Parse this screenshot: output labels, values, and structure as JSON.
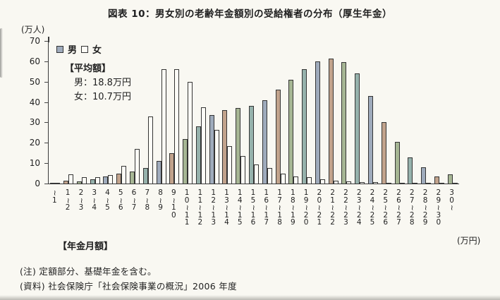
{
  "title": "図表 10：男女別の老齢年金額別の受給権者の分布（厚生年金）",
  "y_axis": {
    "unit": "(万人)",
    "ticks": [
      70,
      60,
      50,
      40,
      30,
      20,
      10,
      0
    ]
  },
  "legend": {
    "male_label": "男",
    "female_label": "女"
  },
  "average_box": {
    "heading": "【平均額】",
    "male_line": "男：18.8万円",
    "female_line": "女：10.7万円"
  },
  "x_axis": {
    "title": "【年金月額】",
    "unit": "(万円)"
  },
  "notes": {
    "note1": "(注) 定額部分、基礎年金を含む。",
    "note2": "(資料) 社会保険庁「社会保険事業の概況」2006 年度"
  },
  "colors": {
    "male_tints": [
      "#9fabbc",
      "#c2a38c",
      "#a6b694",
      "#96b2ac"
    ],
    "female_fill": "#fdfcf6",
    "bar_border": "#343434"
  },
  "chart_data": {
    "type": "bar",
    "title": "男女別の老齢年金額別の受給権者の分布（厚生年金）",
    "xlabel": "年金月額（万円）",
    "ylabel": "万人",
    "ylim": [
      0,
      70
    ],
    "grid": false,
    "legend_position": "inside top-left",
    "categories": [
      "~1",
      "1~2",
      "2~3",
      "3~4",
      "4~5",
      "5~6",
      "6~7",
      "7~8",
      "8~9",
      "9~10",
      "10~11",
      "11~12",
      "12~13",
      "13~14",
      "14~15",
      "15~16",
      "16~17",
      "17~18",
      "18~19",
      "19~20",
      "20~21",
      "21~22",
      "22~23",
      "23~24",
      "24~25",
      "25~26",
      "26~27",
      "27~28",
      "28~29",
      "29~30",
      "30~"
    ],
    "series": [
      {
        "name": "男",
        "values": [
          0.3,
          1.5,
          1.0,
          2.0,
          3.5,
          5.0,
          6.0,
          7.5,
          11,
          15,
          22,
          28,
          33.5,
          36,
          37,
          38,
          41,
          46,
          51,
          56,
          60,
          61.5,
          59.5,
          54,
          43,
          30,
          20.5,
          13,
          8,
          3.5,
          4.5
        ]
      },
      {
        "name": "女",
        "values": [
          0.4,
          4.6,
          3.1,
          3.0,
          4.0,
          8.5,
          17,
          33,
          56,
          56,
          50,
          37.5,
          26.5,
          18.5,
          13.5,
          9.5,
          7.5,
          5.0,
          3.5,
          3.0,
          2.0,
          1.5,
          1.0,
          0.8,
          0.6,
          0.5,
          0.4,
          0.3,
          0.2,
          0.2,
          0.2
        ]
      }
    ]
  }
}
